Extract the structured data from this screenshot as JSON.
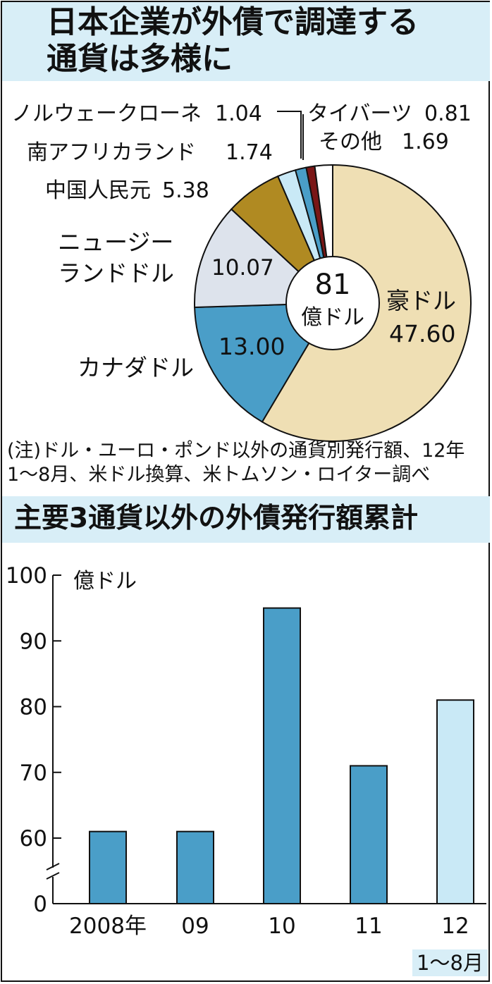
{
  "pie_title_line1": "日本企業が外債で調達する",
  "pie_title_line2": "通貨は多様に",
  "pie_note_line1": "(注)ドル・ユーロ・ポンド以外の通貨別発行額、12年",
  "pie_note_line2": "1～8月、米ドル換算、米トムソン・ロイター調べ",
  "bar_title": "主要3通貨以外の外債発行額累計",
  "colors": {
    "band": "#d8eef7",
    "aud": "#efdfb4",
    "cad": "#4a9ec8",
    "nzd": "#dde3ec",
    "cny": "#b08a22",
    "zar": "#c9e9f6",
    "nok": "#4a9ec8",
    "thb": "#7a1616",
    "other": "#ffffff",
    "bar": "#4a9ec8",
    "bar_highlight": "#c9e9f6"
  },
  "chart_data": [
    {
      "type": "pie",
      "center_value": "81",
      "center_unit": "億ドル",
      "slices": [
        {
          "label": "豪ドル",
          "value": 47.6,
          "value_text": "47.60",
          "color": "#efdfb4"
        },
        {
          "label": "カナダドル",
          "value": 13.0,
          "value_text": "13.00",
          "color": "#4a9ec8"
        },
        {
          "label": "ニュージーランドドル",
          "label_lines": [
            "ニュージー",
            "ランドドル"
          ],
          "value": 10.07,
          "value_text": "10.07",
          "color": "#dde3ec"
        },
        {
          "label": "中国人民元",
          "value": 5.38,
          "value_text": "5.38",
          "color": "#b08a22"
        },
        {
          "label": "南アフリカランド",
          "value": 1.74,
          "value_text": "1.74",
          "color": "#c9e9f6"
        },
        {
          "label": "ノルウェークローネ",
          "value": 1.04,
          "value_text": "1.04",
          "color": "#4a9ec8"
        },
        {
          "label": "タイバーツ",
          "value": 0.81,
          "value_text": "0.81",
          "color": "#7a1616"
        },
        {
          "label": "その他",
          "value": 1.69,
          "value_text": "1.69",
          "color": "#ffffff"
        }
      ]
    },
    {
      "type": "bar",
      "ylabel": "億ドル",
      "ylim": [
        0,
        100
      ],
      "axis_break": true,
      "yticks": [
        0,
        60,
        70,
        80,
        90,
        100
      ],
      "categories": [
        "2008年",
        "09",
        "10",
        "11",
        "12"
      ],
      "category_sub": [
        "",
        "",
        "",
        "",
        "1～8月"
      ],
      "values": [
        61,
        61,
        95,
        71,
        81
      ],
      "highlight_index": 4
    }
  ]
}
